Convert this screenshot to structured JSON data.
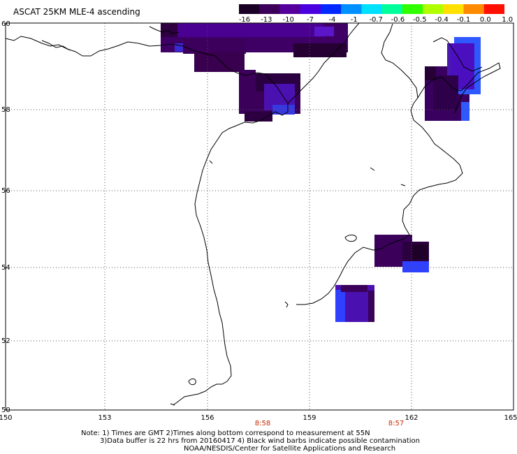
{
  "title": "ASCAT 25KM MLE-4 ascending",
  "colorbar": {
    "labels": [
      "-16",
      "-13",
      "-10",
      "-7",
      "-4",
      "-1",
      "-0.7",
      "-0.6",
      "-0.5",
      "-0.4",
      "-0.1",
      "0.0",
      "1.0"
    ],
    "colors": [
      "#1a0024",
      "#3d005a",
      "#55009a",
      "#4b00e0",
      "#0028ff",
      "#0090ff",
      "#00e0ff",
      "#00ff9a",
      "#30ff00",
      "#b0ff00",
      "#ffe000",
      "#ff8a00",
      "#ff1000"
    ]
  },
  "map": {
    "lat_labels": [
      "60",
      "58",
      "56",
      "54",
      "52",
      "50"
    ],
    "lon_labels": [
      "150",
      "153",
      "156",
      "159",
      "162",
      "165"
    ],
    "time_labels": [
      "8:58",
      "8:57"
    ],
    "time_label_color": "#c62a00",
    "grid_color": "#555555",
    "coast_color": "#000000"
  },
  "footer": {
    "line1": "Note: 1) Times are GMT 2)Times along bottom correspond to measurement at 55N",
    "line2": "3)Data buffer is 22 hrs from 20160417 4) Black wind barbs indicate possible contamination",
    "line3": "NOAA/NESDIS/Center for Satellite Applications and Research"
  }
}
